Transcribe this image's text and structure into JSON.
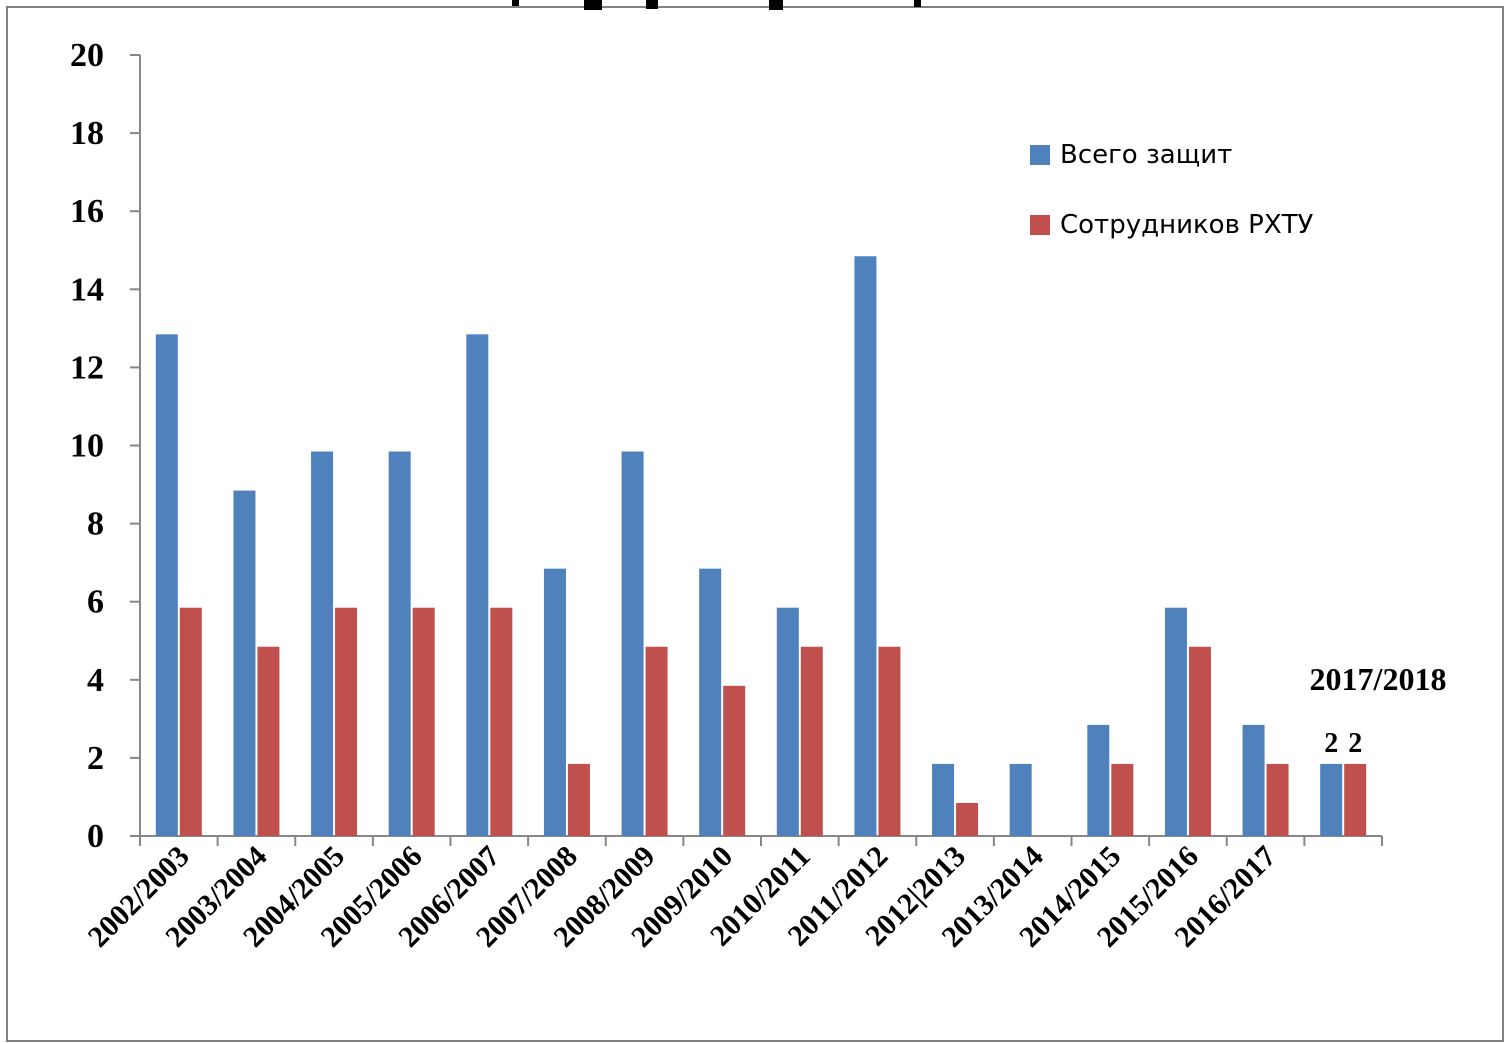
{
  "chart_data": {
    "type": "bar",
    "categories": [
      "2002/2003",
      "2003/2004",
      "2004/2005",
      "2005/2006",
      "2006/2007",
      "2007/2008",
      "2008/2009",
      "2009/2010",
      "2010/2011",
      "2011/2012",
      "2012|2013",
      "2013/2014",
      "2014/2015",
      "2015/2016",
      "2016/2017",
      "2017/2018"
    ],
    "series": [
      {
        "name": "Всего защит",
        "color": "#4f81bd",
        "values": [
          13,
          9,
          10,
          10,
          13,
          7,
          10,
          7,
          6,
          15,
          2,
          2,
          3,
          6,
          3,
          2
        ]
      },
      {
        "name": "Сотрудников РХТУ",
        "color": "#c0504d",
        "values": [
          6,
          5,
          6,
          6,
          6,
          2,
          5,
          4,
          5,
          5,
          1,
          0,
          2,
          5,
          2,
          2
        ]
      }
    ],
    "ylim": [
      0,
      20
    ],
    "yticks": [
      "0",
      "2",
      "4",
      "6",
      "8",
      "10",
      "12",
      "14",
      "16",
      "18",
      "20"
    ],
    "legend_position": "top-right",
    "annotation": "2017/2018",
    "last_data_labels": [
      "2",
      "2"
    ],
    "grid": false
  }
}
